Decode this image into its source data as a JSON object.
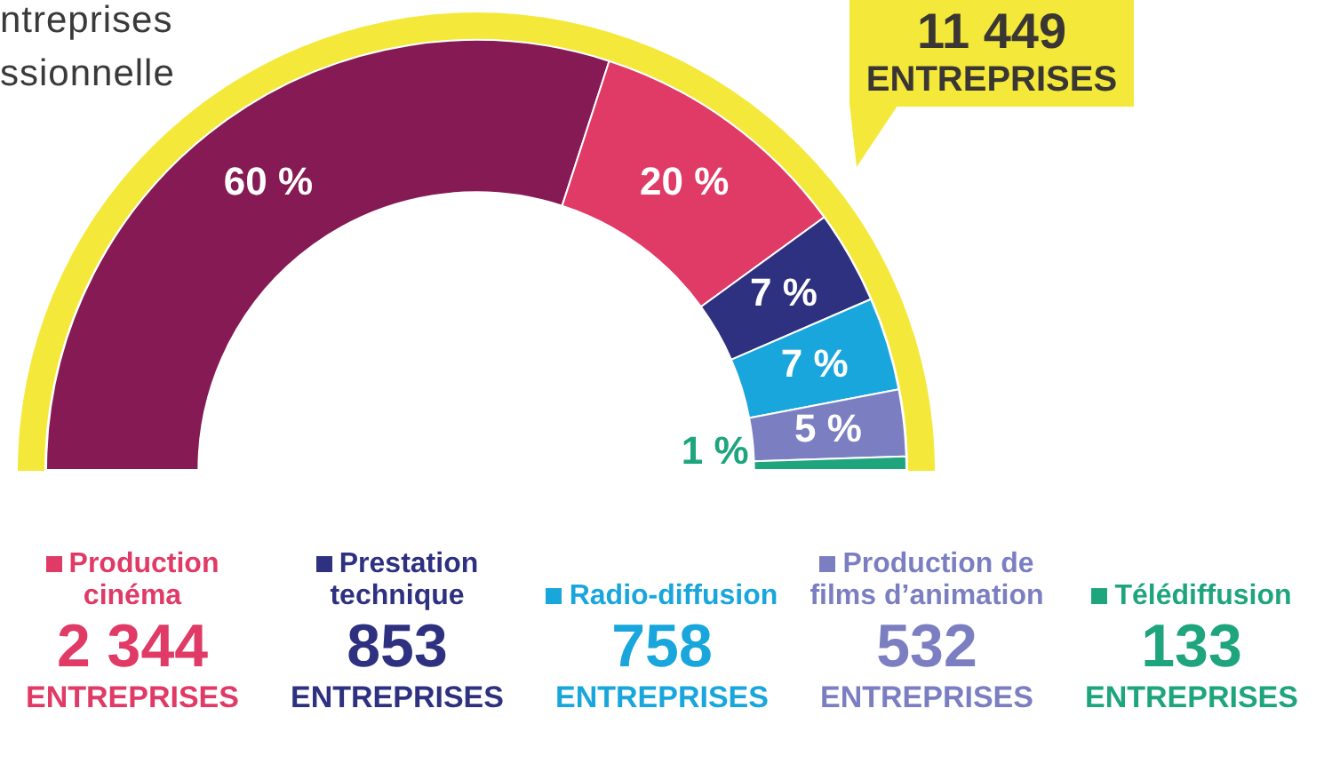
{
  "chart_data": {
    "type": "donut",
    "categories": [
      null,
      "Production cinéma",
      "Prestation technique",
      "Radio-diffusion",
      "Production de films d’animation",
      "Télédiffusion"
    ],
    "values": [
      60,
      20,
      7,
      7,
      5,
      1
    ],
    "value_labels": [
      "60 %",
      "20 %",
      "7 %",
      "7 %",
      "5 %",
      "1 %"
    ],
    "colors": [
      "#851a55",
      "#e03a66",
      "#2e3080",
      "#18a6dc",
      "#7b7fc1",
      "#1fa57e"
    ],
    "legend": "bottom",
    "annotations": [
      "ntreprises",
      "ssionnelle",
      "11 449",
      "ENTREPRISES",
      null,
      null,
      "2 344",
      "ENTREPRISES",
      "853",
      "ENTREPRISES",
      "758",
      "ENTREPRISES",
      "532",
      "ENTREPRISES",
      "133",
      "ENTREPRISES"
    ]
  }
}
